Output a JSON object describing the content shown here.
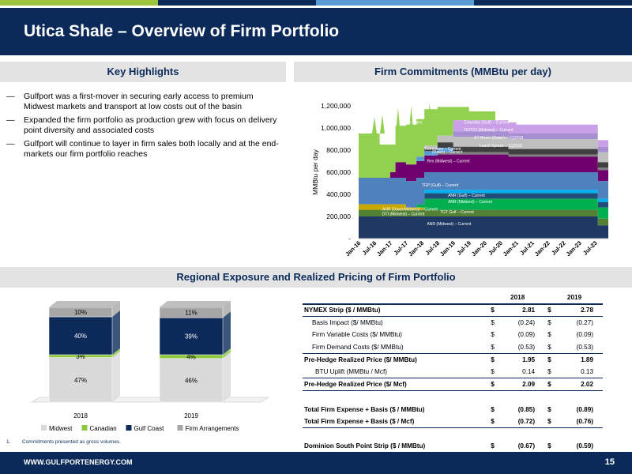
{
  "colors": {
    "navy": "#0b2a5a",
    "section_bg": "#e3e3e3",
    "strip": [
      "#9dc33b",
      "#0b2a5a",
      "#5b9bd5",
      "#0b2a5a"
    ]
  },
  "header": {
    "title": "Utica Shale – Overview of Firm Portfolio"
  },
  "sections": {
    "highlights": "Key Highlights",
    "commitments": "Firm Commitments (MMBtu per day)",
    "regional": "Regional Exposure and Realized Pricing of Firm Portfolio"
  },
  "bullets": [
    "Gulfport was a first-mover in securing early access to premium Midwest markets and transport at low costs out of the basin",
    "Expanded the firm portfolio as production grew with focus on delivery point diversity and associated costs",
    "Gulfport will continue to layer in firm sales both locally and at the end-markets our firm portfolio reaches"
  ],
  "chart_data": [
    {
      "type": "area",
      "title": "",
      "ylabel": "MMBtu per day",
      "ylim": [
        0,
        1200000
      ],
      "yticks": [
        "-",
        "200,000",
        "400,000",
        "600,000",
        "800,000",
        "1,000,000",
        "1,200,000"
      ],
      "x_ticks": [
        "Jan-16",
        "Jul-16",
        "Jan-17",
        "Jul-17",
        "Jan-18",
        "Jul-18",
        "Jan-19",
        "Jul-19",
        "Jan-20",
        "Jul-20",
        "Jan-21",
        "Jul-21",
        "Jan-22",
        "Jul-22",
        "Jan-23",
        "Jul-23"
      ],
      "x_range": [
        "2016-01",
        "2023-12"
      ],
      "series": [
        {
          "name": "ANR (Midwest) – Current",
          "color": "#203864"
        },
        {
          "name": "DTI (Midwest) – Current",
          "color": "#548235"
        },
        {
          "name": "ANR (Dawn/Midwest) – Current",
          "color": "#c9a800"
        },
        {
          "name": "TGT Gulf – Current",
          "color": "#00b050"
        },
        {
          "name": "ANR (Midwest) – Current",
          "color": "#1f4e79"
        },
        {
          "name": "ANR (Gulf) – Current",
          "color": "#00b0f0"
        },
        {
          "name": "TGP (Gulf) – Current",
          "color": "#4f81bd"
        },
        {
          "name": "Rex (Midwest) – Current",
          "color": "#70006e"
        },
        {
          "name": "(Dawn) – Current",
          "color": "#7f7f7f"
        },
        {
          "name": "Tennessee – Current",
          "color": "#5b9bd5"
        },
        {
          "name": "Leach Xpress – 1Q2018",
          "color": "#404040"
        },
        {
          "name": "ET Rover (Dawn) – 1Q2018",
          "color": "#bfbfbf"
        },
        {
          "name": "TETCO (Midwest) – Current",
          "color": "#a58fd1"
        },
        {
          "name": "Columbia (Gulf) – Current",
          "color": "#c9a0e8"
        },
        {
          "name": "Firm Sales",
          "color": "#92d050"
        }
      ],
      "breakpoints": [
        {
          "x": "2016-01",
          "v": [
            200000,
            60000,
            50000,
            0,
            0,
            0,
            240000,
            0,
            0,
            0,
            0,
            0,
            0,
            0,
            400000
          ]
        },
        {
          "x": "2016-09",
          "v": [
            200000,
            60000,
            50000,
            0,
            0,
            0,
            240000,
            0,
            0,
            0,
            0,
            0,
            0,
            0,
            300000
          ]
        },
        {
          "x": "2017-01",
          "v": [
            200000,
            60000,
            50000,
            0,
            0,
            0,
            240000,
            50000,
            0,
            0,
            0,
            0,
            0,
            0,
            250000
          ]
        },
        {
          "x": "2017-03",
          "v": [
            200000,
            60000,
            50000,
            0,
            0,
            0,
            240000,
            140000,
            0,
            0,
            0,
            0,
            0,
            0,
            330000
          ]
        },
        {
          "x": "2017-07",
          "v": [
            200000,
            60000,
            20000,
            0,
            0,
            0,
            240000,
            150000,
            0,
            0,
            0,
            0,
            0,
            0,
            360000
          ]
        },
        {
          "x": "2017-11",
          "v": [
            200000,
            60000,
            20000,
            30000,
            0,
            0,
            240000,
            150000,
            0,
            40000,
            0,
            0,
            0,
            0,
            340000
          ]
        },
        {
          "x": "2018-02",
          "v": [
            200000,
            60000,
            0,
            100000,
            50000,
            30000,
            160000,
            150000,
            0,
            40000,
            20000,
            30000,
            0,
            0,
            330000
          ]
        },
        {
          "x": "2018-07",
          "v": [
            200000,
            60000,
            0,
            100000,
            50000,
            30000,
            160000,
            160000,
            20000,
            40000,
            50000,
            60000,
            0,
            0,
            260000
          ]
        },
        {
          "x": "2019-01",
          "v": [
            200000,
            60000,
            0,
            100000,
            50000,
            30000,
            160000,
            160000,
            20000,
            0,
            50000,
            90000,
            50000,
            100000,
            120000
          ]
        },
        {
          "x": "2019-07",
          "v": [
            200000,
            60000,
            0,
            100000,
            50000,
            30000,
            160000,
            160000,
            20000,
            0,
            50000,
            90000,
            50000,
            100000,
            80000
          ]
        },
        {
          "x": "2020-05",
          "v": [
            200000,
            60000,
            0,
            100000,
            50000,
            30000,
            160000,
            160000,
            20000,
            0,
            50000,
            90000,
            50000,
            100000,
            0
          ]
        },
        {
          "x": "2020-10",
          "v": [
            200000,
            60000,
            0,
            100000,
            50000,
            30000,
            160000,
            140000,
            20000,
            0,
            50000,
            90000,
            50000,
            100000,
            0
          ]
        },
        {
          "x": "2021-01",
          "v": [
            200000,
            60000,
            0,
            100000,
            50000,
            30000,
            160000,
            140000,
            20000,
            0,
            50000,
            90000,
            50000,
            80000,
            0
          ]
        },
        {
          "x": "2023-06",
          "v": [
            200000,
            60000,
            0,
            100000,
            50000,
            30000,
            160000,
            140000,
            20000,
            0,
            50000,
            90000,
            50000,
            80000,
            0
          ]
        },
        {
          "x": "2023-08",
          "v": [
            120000,
            60000,
            0,
            100000,
            50000,
            30000,
            160000,
            100000,
            20000,
            0,
            50000,
            90000,
            50000,
            60000,
            0
          ]
        },
        {
          "x": "2023-12",
          "v": [
            80000,
            60000,
            0,
            100000,
            50000,
            30000,
            160000,
            100000,
            20000,
            0,
            50000,
            90000,
            50000,
            60000,
            0
          ]
        }
      ],
      "annotations": [
        "ANR (Midwest) – Current",
        "DTI (Midwest) – Current",
        "ANR (Dawn/Midwest) – Current",
        "TGT Gulf – Current",
        "ANR (Midwest) – Current",
        "ANR (Gulf) – Current",
        "TGP (Gulf) – Current",
        "Rex (Midwest) – Current",
        "(Dawn) – Current",
        "Tennessee – Current",
        "Leach Xpress – 1Q2018",
        "ET Rover (Dawn) – 1Q2018",
        "TETCO (Midwest) – Current",
        "Columbia (Gulf) – Current",
        "Firm Sales"
      ]
    },
    {
      "type": "bar",
      "stacked": true,
      "percent": true,
      "categories": [
        "2018",
        "2019"
      ],
      "series": [
        {
          "name": "Midwest",
          "values": [
            47,
            46
          ],
          "labels": [
            "47%",
            "46%"
          ],
          "color": "#d9d9d9"
        },
        {
          "name": "Canadian",
          "values": [
            3,
            4
          ],
          "labels": [
            "3%",
            "4%"
          ],
          "color": "#8dc63f"
        },
        {
          "name": "Gulf Coast",
          "values": [
            40,
            39
          ],
          "labels": [
            "40%",
            "39%"
          ],
          "color": "#0b2a5a"
        },
        {
          "name": "Firm Arrangements",
          "values": [
            10,
            11
          ],
          "labels": [
            "10%",
            "11%"
          ],
          "color": "#a6a6a6"
        }
      ],
      "legend_position": "bottom"
    }
  ],
  "pricing_table": {
    "years": [
      "2018",
      "2019"
    ],
    "rows": [
      {
        "label": "NYMEX Strip ($ / MMBtu)",
        "cur1": "$",
        "v1": "2.81",
        "cur2": "$",
        "v2": "2.78",
        "bold": true
      },
      {
        "label": "Basis Impact ($/ MMBtu)",
        "cur1": "$",
        "v1": "(0.24)",
        "cur2": "$",
        "v2": "(0.27)"
      },
      {
        "label": "Firm Variable Costs ($/ MMBtu)",
        "cur1": "$",
        "v1": "(0.09)",
        "cur2": "$",
        "v2": "(0.09)"
      },
      {
        "label": "Firm Demand Costs ($/ MMBtu)",
        "cur1": "$",
        "v1": "(0.53)",
        "cur2": "$",
        "v2": "(0.53)"
      },
      {
        "label": "Pre-Hedge Realized Price ($/ MMBtu)",
        "cur1": "$",
        "v1": "1.95",
        "cur2": "$",
        "v2": "1.89",
        "bold": true
      },
      {
        "label": "BTU Uplift (MMBtu / Mcf)",
        "cur1": "$",
        "v1": "0.14",
        "cur2": "$",
        "v2": "0.13"
      },
      {
        "label": "Pre-Hedge Realized Price ($/ Mcf)",
        "cur1": "$",
        "v1": "2.09",
        "cur2": "$",
        "v2": "2.02",
        "bold": true
      },
      {
        "label": "Total Firm Expense + Basis ($ / MMBtu)",
        "cur1": "$",
        "v1": "(0.85)",
        "cur2": "$",
        "v2": "(0.89)",
        "bold": true
      },
      {
        "label": "Total Firm Expense + Basis ($ / Mcf)",
        "cur1": "$",
        "v1": "(0.72)",
        "cur2": "$",
        "v2": "(0.76)",
        "bold": true
      },
      {
        "label": "Dominion South Point Strip ($ / MMBtu)",
        "cur1": "$",
        "v1": "(0.67)",
        "cur2": "$",
        "v2": "(0.59)",
        "bold": true
      }
    ]
  },
  "footnote": {
    "num": "1.",
    "text": "Commitments presented as gross volumes."
  },
  "footer": {
    "url": "WWW.GULFPORTENERGY.COM",
    "page": "15"
  }
}
